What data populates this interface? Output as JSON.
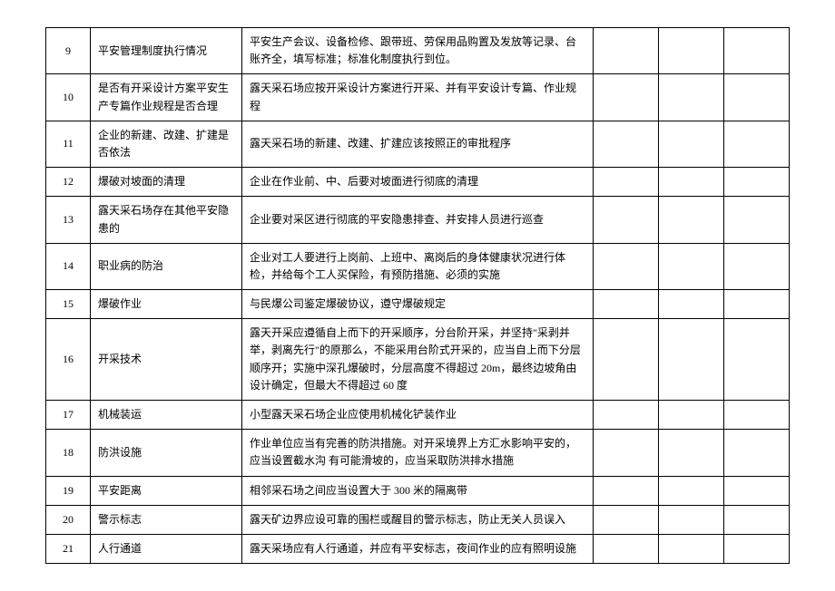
{
  "rows": [
    {
      "num": "9",
      "item": "平安管理制度执行情况",
      "desc": "平安生产会议、设备检修、跟带班、劳保用品购置及发放等记录、台账齐全，填写标准；标准化制度执行到位。"
    },
    {
      "num": "10",
      "item": "是否有开采设计方案平安生产专篇作业规程是否合理",
      "desc": "露天采石场应按开采设计方案进行开采、并有平安设计专篇、作业规程"
    },
    {
      "num": "11",
      "item": "企业的新建、改建、扩建是否依法",
      "desc": "露天采石场的新建、改建、扩建应该按照正的审批程序"
    },
    {
      "num": "12",
      "item": "爆破对坡面的清理",
      "desc": "企业在作业前、中、后要对坡面进行彻底的清理"
    },
    {
      "num": "13",
      "item": "露天采石场存在其他平安隐患的",
      "desc": "企业要对采区进行彻底的平安隐患排查、并安排人员进行巡查"
    },
    {
      "num": "14",
      "item": "职业病的防治",
      "desc": "企业对工人要进行上岗前、上班中、离岗后的身体健康状况进行体检，并给每个工人买保险，有预防措施、必须的实施"
    },
    {
      "num": "15",
      "item": "爆破作业",
      "desc": "与民爆公司鉴定爆破协议，遵守爆破规定"
    },
    {
      "num": "16",
      "item": "开采技术",
      "desc": "露天开采应遵循自上而下的开采顺序，分台阶开采，并坚持\"采剥并举，剥离先行\"的原那么，不能采用台阶式开采的，应当自上而下分层顺序开；实施中深孔爆破时，分层高度不得超过 20m，最终边坡角由设计确定，但最大不得超过 60 度"
    },
    {
      "num": "17",
      "item": "机械装运",
      "desc": "小型露天采石场企业应使用机械化铲装作业"
    },
    {
      "num": "18",
      "item": "防洪设施",
      "desc": "作业单位应当有完善的防洪措施。对开采境界上方汇水影响平安的，应当设置截水沟 有可能滑坡的，应当采取防洪排水措施"
    },
    {
      "num": "19",
      "item": "平安距离",
      "desc": "相邻采石场之间应当设置大于 300 米的隔离带"
    },
    {
      "num": "20",
      "item": "警示标志",
      "desc": "露天矿边界应设可靠的围栏或醒目的警示标志，防止无关人员误入"
    },
    {
      "num": "21",
      "item": "人行通道",
      "desc": "露天采场应有人行通道，并应有平安标志，夜间作业的应有照明设施"
    }
  ]
}
